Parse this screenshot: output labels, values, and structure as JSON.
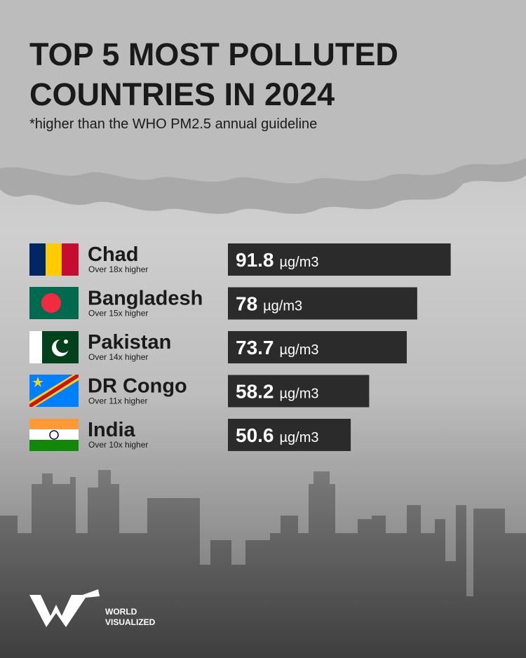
{
  "chart_data": {
    "type": "bar",
    "orientation": "horizontal",
    "title": [
      "TOP 5 MOST POLLUTED",
      "COUNTRIES IN 2024"
    ],
    "subtitle": "*higher than the WHO PM2.5 annual guideline",
    "categories": [
      "Chad",
      "Bangladesh",
      "Pakistan",
      "DR Congo",
      "India"
    ],
    "notes": [
      "Over 18x higher",
      "Over 15x higher",
      "Over 14x higher",
      "Over 11x higher",
      "Over 10x higher"
    ],
    "values": [
      91.8,
      78,
      73.7,
      58.2,
      50.6
    ],
    "unit": "µg/m3",
    "color": "#2b2b2b",
    "brand": [
      "WORLD",
      "VISUALIZED"
    ]
  }
}
